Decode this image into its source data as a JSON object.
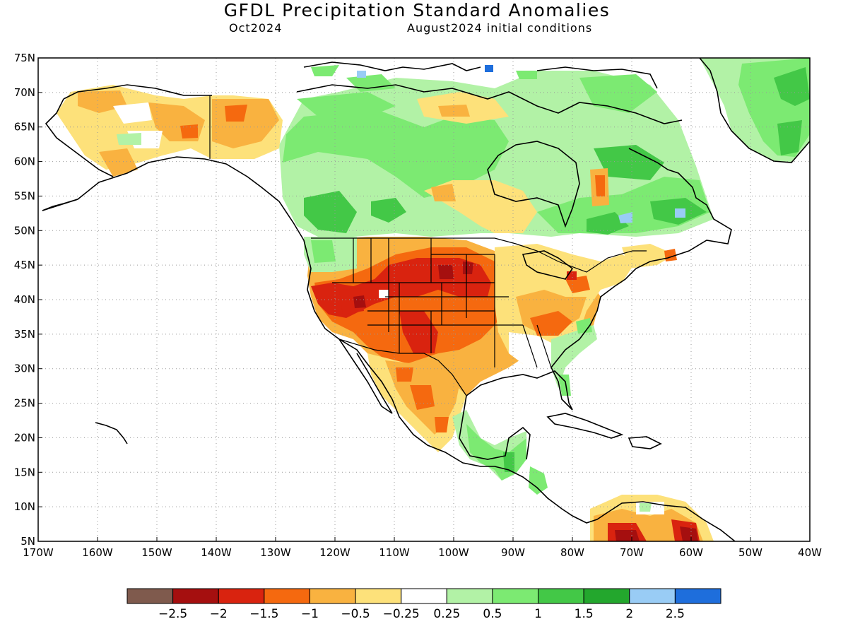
{
  "title": "GFDL Precipitation Standard Anomalies",
  "subtitle_left": "Oct2024",
  "subtitle_right": "August2024 initial conditions",
  "map": {
    "lon_range": [
      -170,
      -40
    ],
    "lat_range": [
      5,
      75
    ],
    "lon_labels": [
      "170W",
      "160W",
      "150W",
      "140W",
      "130W",
      "120W",
      "110W",
      "100W",
      "90W",
      "80W",
      "70W",
      "60W",
      "50W",
      "40W"
    ],
    "lat_labels": [
      "75N",
      "70N",
      "65N",
      "60N",
      "55N",
      "50N",
      "45N",
      "40N",
      "35N",
      "30N",
      "25N",
      "20N",
      "15N",
      "10N",
      "5N"
    ],
    "gridlines": "dotted"
  },
  "colorbar": {
    "colors": [
      "#7f5a4d",
      "#a50f0f",
      "#d9230f",
      "#f5690f",
      "#f9b240",
      "#fde17a",
      "#ffffff",
      "#b2f2a6",
      "#7cea72",
      "#43c847",
      "#23a72d",
      "#99ccf5",
      "#1e6edc"
    ],
    "labels": [
      "−2.5",
      "−2",
      "−1.5",
      "−1",
      "−0.5",
      "−0.25",
      "0.25",
      "0.5",
      "1",
      "1.5",
      "2",
      "2.5"
    ]
  },
  "regions": [
    {
      "name": "alaska-yukon-dry",
      "lon": -140,
      "lat": 65,
      "category": -1
    },
    {
      "name": "canada-west-wet",
      "lon": -118,
      "lat": 54,
      "category": 1
    },
    {
      "name": "canada-central-wet",
      "lon": -95,
      "lat": 60,
      "category": 0.5
    },
    {
      "name": "quebec-wet",
      "lon": -72,
      "lat": 52,
      "category": 1
    },
    {
      "name": "greenland-wet",
      "lon": -45,
      "lat": 68,
      "category": 1
    },
    {
      "name": "great-basin-dry",
      "lon": -115,
      "lat": 40,
      "category": -2
    },
    {
      "name": "great-plains-dry",
      "lon": -100,
      "lat": 42,
      "category": -1.5
    },
    {
      "name": "southwest-dry",
      "lon": -108,
      "lat": 32,
      "category": -1.5
    },
    {
      "name": "mexico-dry",
      "lon": -104,
      "lat": 26,
      "category": -0.5
    },
    {
      "name": "ohio-valley-dry",
      "lon": -85,
      "lat": 38,
      "category": -1
    },
    {
      "name": "central-america-wet",
      "lon": -88,
      "lat": 16,
      "category": 1
    },
    {
      "name": "venezuela-dry",
      "lon": -68,
      "lat": 8,
      "category": -2
    }
  ]
}
